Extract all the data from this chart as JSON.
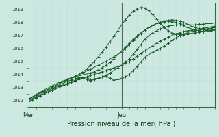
{
  "xlabel": "Pression niveau de la mer( hPa )",
  "xlim": [
    0,
    48
  ],
  "ylim": [
    1011.5,
    1019.5
  ],
  "yticks": [
    1012,
    1013,
    1014,
    1015,
    1016,
    1017,
    1018,
    1019
  ],
  "xtick_positions": [
    0,
    24
  ],
  "xtick_labels": [
    "Mer",
    "Jeu"
  ],
  "bg_color": "#cce8e0",
  "grid_major_color": "#9ec8be",
  "grid_minor_color": "#b8dcd6",
  "line_color": "#1a5c2a",
  "vline_color": "#556655",
  "vline_x": 24,
  "line1_x": [
    0,
    1,
    2,
    3,
    4,
    5,
    6,
    7,
    8,
    9,
    10,
    11,
    12,
    13,
    14,
    15,
    16,
    17,
    18,
    19,
    20,
    21,
    22,
    23,
    24,
    25,
    26,
    27,
    28,
    29,
    30,
    31,
    32,
    33,
    34,
    35,
    36,
    37,
    38,
    39,
    40,
    41,
    42,
    43,
    44,
    45,
    46,
    47,
    48
  ],
  "line1_y": [
    1011.9,
    1012.05,
    1012.2,
    1012.35,
    1012.5,
    1012.65,
    1012.8,
    1012.95,
    1013.1,
    1013.2,
    1013.3,
    1013.4,
    1013.5,
    1013.6,
    1013.7,
    1013.8,
    1013.9,
    1014.0,
    1014.1,
    1014.2,
    1014.3,
    1014.4,
    1014.5,
    1014.6,
    1014.7,
    1014.85,
    1015.0,
    1015.2,
    1015.4,
    1015.6,
    1015.8,
    1016.0,
    1016.2,
    1016.4,
    1016.55,
    1016.7,
    1016.85,
    1017.0,
    1017.1,
    1017.2,
    1017.3,
    1017.35,
    1017.4,
    1017.45,
    1017.5,
    1017.55,
    1017.6,
    1017.65,
    1017.7
  ],
  "line2_x": [
    0,
    2,
    4,
    6,
    8,
    10,
    11,
    12,
    13,
    14,
    15,
    16,
    17,
    18,
    19,
    20,
    21,
    22,
    23,
    24,
    25,
    26,
    27,
    28,
    29,
    30,
    31,
    32,
    33,
    34,
    35,
    36,
    37,
    38,
    39,
    40,
    41,
    42,
    43,
    44,
    45,
    46,
    47,
    48
  ],
  "line2_y": [
    1012.0,
    1012.25,
    1012.5,
    1012.75,
    1013.0,
    1013.25,
    1013.4,
    1013.55,
    1013.7,
    1013.75,
    1013.6,
    1013.5,
    1013.6,
    1013.7,
    1013.8,
    1013.85,
    1013.7,
    1013.55,
    1013.6,
    1013.7,
    1013.8,
    1014.0,
    1014.3,
    1014.6,
    1014.95,
    1015.3,
    1015.5,
    1015.7,
    1015.85,
    1016.0,
    1016.2,
    1016.4,
    1016.6,
    1016.8,
    1016.95,
    1017.1,
    1017.2,
    1017.3,
    1017.35,
    1017.4,
    1017.45,
    1017.5,
    1017.55,
    1017.6
  ],
  "line3_x": [
    0,
    2,
    4,
    6,
    8,
    10,
    11,
    12,
    13,
    14,
    15,
    16,
    17,
    18,
    19,
    20,
    21,
    22,
    23,
    24,
    25,
    26,
    27,
    28,
    29,
    30,
    31,
    32,
    33,
    34,
    35,
    36,
    37,
    38,
    39,
    40,
    41,
    42,
    43,
    44,
    45,
    46,
    47,
    48
  ],
  "line3_y": [
    1012.0,
    1012.3,
    1012.6,
    1012.9,
    1013.2,
    1013.45,
    1013.55,
    1013.65,
    1013.75,
    1013.8,
    1013.75,
    1013.6,
    1013.65,
    1013.7,
    1013.8,
    1013.9,
    1014.1,
    1014.3,
    1014.5,
    1014.7,
    1014.95,
    1015.2,
    1015.55,
    1015.9,
    1016.3,
    1016.7,
    1016.95,
    1017.2,
    1017.35,
    1017.5,
    1017.6,
    1017.7,
    1017.75,
    1017.8,
    1017.8,
    1017.8,
    1017.8,
    1017.8,
    1017.8,
    1017.85,
    1017.85,
    1017.9,
    1017.9,
    1017.95
  ],
  "line4_x": [
    0,
    2,
    4,
    6,
    8,
    10,
    12,
    14,
    16,
    17,
    18,
    19,
    20,
    21,
    22,
    23,
    24,
    25,
    26,
    27,
    28,
    29,
    30,
    31,
    32,
    33,
    34,
    35,
    36,
    37,
    38,
    39,
    40,
    41,
    42,
    43,
    44,
    45,
    46,
    47,
    48
  ],
  "line4_y": [
    1012.1,
    1012.4,
    1012.7,
    1013.0,
    1013.3,
    1013.55,
    1013.8,
    1013.95,
    1014.1,
    1014.2,
    1014.35,
    1014.5,
    1014.7,
    1014.9,
    1015.2,
    1015.5,
    1015.8,
    1016.1,
    1016.4,
    1016.7,
    1016.95,
    1017.2,
    1017.4,
    1017.6,
    1017.75,
    1017.9,
    1018.0,
    1018.1,
    1018.15,
    1018.2,
    1018.15,
    1018.1,
    1018.0,
    1017.85,
    1017.7,
    1017.6,
    1017.5,
    1017.45,
    1017.4,
    1017.4,
    1017.45
  ],
  "line5_x": [
    0,
    2,
    4,
    6,
    8,
    10,
    12,
    13,
    14,
    15,
    16,
    17,
    18,
    19,
    20,
    21,
    22,
    23,
    24,
    25,
    26,
    27,
    28,
    29,
    30,
    31,
    32,
    33,
    34,
    35,
    36,
    37,
    38,
    39,
    40,
    41,
    42,
    43,
    44,
    45,
    46,
    47,
    48
  ],
  "line5_y": [
    1012.1,
    1012.45,
    1012.8,
    1013.1,
    1013.4,
    1013.6,
    1013.8,
    1014.0,
    1014.2,
    1014.4,
    1014.7,
    1015.0,
    1015.35,
    1015.7,
    1016.1,
    1016.5,
    1016.9,
    1017.35,
    1017.8,
    1018.2,
    1018.55,
    1018.85,
    1019.05,
    1019.15,
    1019.1,
    1018.9,
    1018.6,
    1018.25,
    1017.9,
    1017.6,
    1017.35,
    1017.2,
    1017.1,
    1017.05,
    1017.05,
    1017.1,
    1017.15,
    1017.2,
    1017.25,
    1017.3,
    1017.4,
    1017.5,
    1017.6
  ],
  "line6_x": [
    0,
    2,
    4,
    6,
    8,
    10,
    12,
    14,
    16,
    18,
    20,
    22,
    24,
    25,
    26,
    27,
    28,
    29,
    30,
    31,
    32,
    33,
    34,
    35,
    36,
    37,
    38,
    39,
    40,
    41,
    42,
    43,
    44,
    45,
    46,
    47,
    48
  ],
  "line6_y": [
    1012.1,
    1012.4,
    1012.7,
    1013.0,
    1013.3,
    1013.6,
    1013.85,
    1014.1,
    1014.4,
    1014.7,
    1015.0,
    1015.35,
    1015.7,
    1016.0,
    1016.3,
    1016.6,
    1016.9,
    1017.15,
    1017.4,
    1017.6,
    1017.75,
    1017.9,
    1018.0,
    1018.05,
    1018.1,
    1018.05,
    1018.0,
    1017.9,
    1017.75,
    1017.6,
    1017.5,
    1017.4,
    1017.35,
    1017.3,
    1017.3,
    1017.35,
    1017.4
  ]
}
